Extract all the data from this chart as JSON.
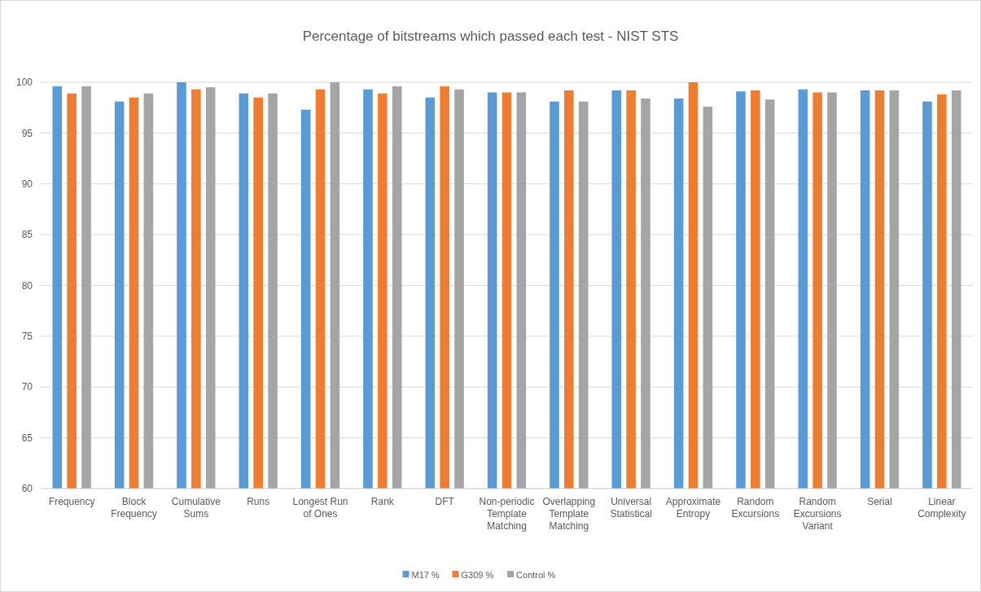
{
  "chart_data": {
    "type": "bar",
    "title": "Percentage of bitstreams which passed each test - NIST STS",
    "categories": [
      "Frequency",
      "Block\nFrequency",
      "Cumulative\nSums",
      "Runs",
      "Longest Run\nof Ones",
      "Rank",
      "DFT",
      "Non-periodic\nTemplate\nMatching",
      "Overlapping\nTemplate\nMatching",
      "Universal\nStatistical",
      "Approximate\nEntropy",
      "Random\nExcursions",
      "Random\nExcursions\nVariant",
      "Serial",
      "Linear\nComplexity"
    ],
    "series": [
      {
        "name": "M17 %",
        "color": "#5b9bd5",
        "values": [
          99.6,
          98.1,
          100,
          98.9,
          97.3,
          99.3,
          98.5,
          99.0,
          98.1,
          99.2,
          98.4,
          99.1,
          99.3,
          99.2,
          98.1
        ]
      },
      {
        "name": "G309 %",
        "color": "#ed7d31",
        "values": [
          98.9,
          98.5,
          99.3,
          98.5,
          99.3,
          98.9,
          99.6,
          99.0,
          99.2,
          99.2,
          100,
          99.2,
          99.0,
          99.2,
          98.8
        ]
      },
      {
        "name": "Control %",
        "color": "#a5a5a5",
        "values": [
          99.6,
          98.9,
          99.5,
          98.9,
          100,
          99.6,
          99.3,
          99.0,
          98.1,
          98.4,
          97.6,
          98.3,
          99.0,
          99.2,
          99.2
        ]
      }
    ],
    "ylim": [
      60,
      100
    ],
    "yticks": [
      60,
      65,
      70,
      75,
      80,
      85,
      90,
      95,
      100
    ],
    "grid": "y",
    "legend": "bottom"
  }
}
